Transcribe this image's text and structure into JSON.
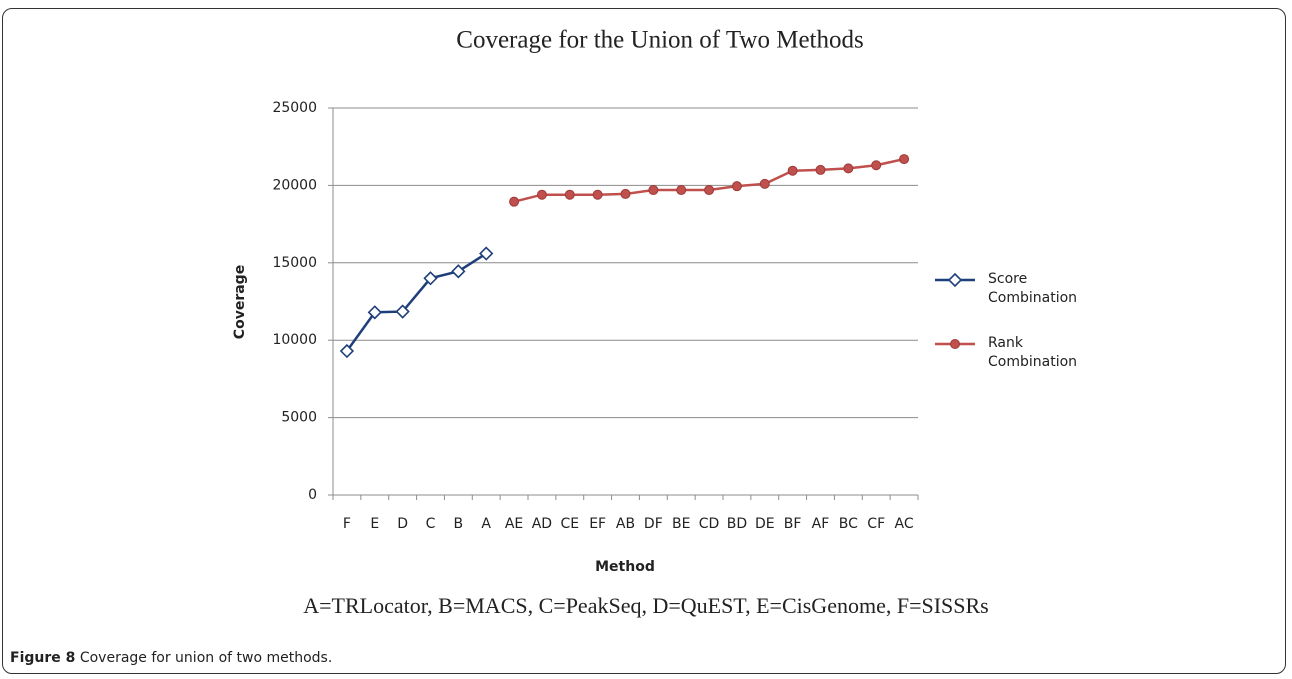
{
  "chart_data": {
    "type": "line",
    "title": "Coverage for the Union of Two Methods",
    "x_label": "Method",
    "y_label": "Coverage",
    "categories": [
      "F",
      "E",
      "D",
      "C",
      "B",
      "A",
      "AE",
      "AD",
      "CE",
      "EF",
      "AB",
      "DF",
      "BE",
      "CD",
      "BD",
      "DE",
      "BF",
      "AF",
      "BC",
      "CF",
      "AC"
    ],
    "series": [
      {
        "name": "Score Combination",
        "color": "#1f3f7a",
        "marker": "diamond",
        "values": [
          9300,
          11800,
          11850,
          14000,
          14450,
          15600,
          null,
          null,
          null,
          null,
          null,
          null,
          null,
          null,
          null,
          null,
          null,
          null,
          null,
          null,
          null
        ]
      },
      {
        "name": "Rank Combination",
        "color": "#c0504d",
        "marker": "circle",
        "values": [
          null,
          null,
          null,
          null,
          null,
          null,
          18950,
          19400,
          19400,
          19400,
          19450,
          19700,
          19700,
          19700,
          19950,
          20100,
          20950,
          21000,
          21100,
          21300,
          21700
        ]
      }
    ],
    "ylim": [
      0,
      25000
    ],
    "yticks": [
      0,
      5000,
      10000,
      15000,
      20000,
      25000
    ],
    "grid": true,
    "legend": "right",
    "note": "A=TRLocator, B=MACS, C=PeakSeq, D=QuEST, E=CisGenome, F=SISSRs"
  },
  "caption": {
    "label": "Figure 8",
    "text": "Coverage for union of two methods."
  }
}
